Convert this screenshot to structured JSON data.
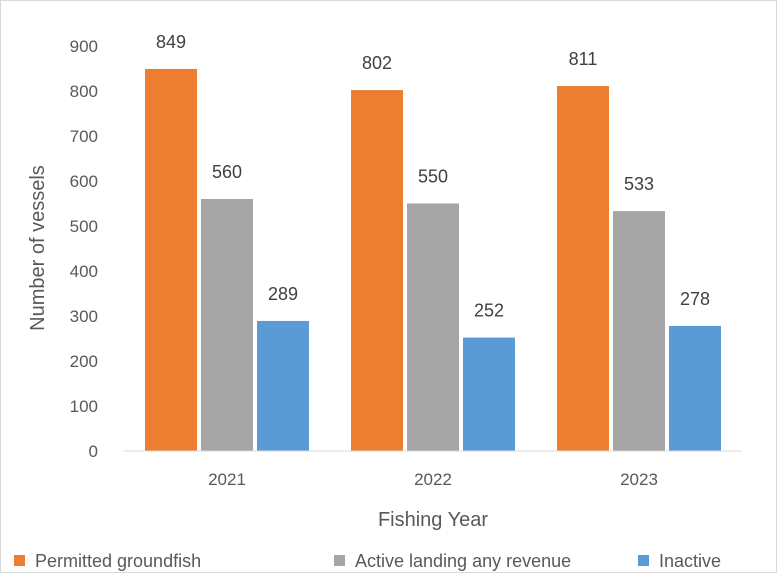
{
  "chart_data": {
    "type": "bar",
    "title": "",
    "xlabel": "Fishing Year",
    "ylabel": "Number of vessels",
    "categories": [
      "2021",
      "2022",
      "2023"
    ],
    "series": [
      {
        "name": "Permitted groundfish",
        "color": "#ed7d31",
        "values": [
          849,
          802,
          811
        ]
      },
      {
        "name": "Active landing any revenue",
        "color": "#a5a5a5",
        "values": [
          560,
          550,
          533
        ]
      },
      {
        "name": "Inactive",
        "color": "#5b9bd5",
        "values": [
          289,
          252,
          278
        ]
      }
    ],
    "ylim": [
      0,
      900
    ],
    "yticks": [
      0,
      100,
      200,
      300,
      400,
      500,
      600,
      700,
      800,
      900
    ],
    "grid": false,
    "legend_position": "bottom"
  }
}
